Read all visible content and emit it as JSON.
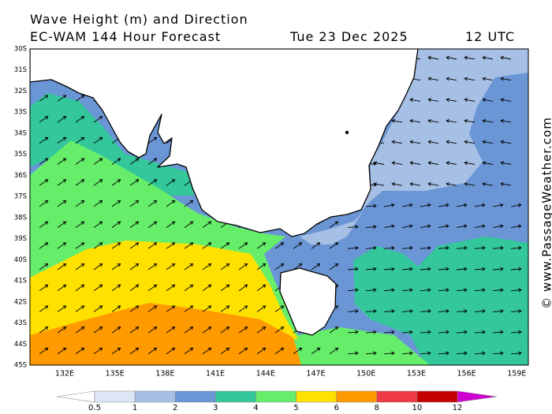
{
  "header": {
    "title": "Wave Height (m) and Direction",
    "model": "EC-WAM 144 Hour Forecast",
    "date": "Tue 23 Dec 2025",
    "time": "12 UTC"
  },
  "map": {
    "lat_labels": [
      "30S",
      "31S",
      "32S",
      "33S",
      "34S",
      "35S",
      "36S",
      "37S",
      "38S",
      "39S",
      "40S",
      "41S",
      "42S",
      "43S",
      "44S",
      "45S"
    ],
    "lon_labels": [
      "132E",
      "135E",
      "138E",
      "141E",
      "144E",
      "147E",
      "150E",
      "153E",
      "156E",
      "159E"
    ]
  },
  "legend": {
    "ticks": [
      0.5,
      1,
      2,
      3,
      4,
      5,
      6,
      8,
      10,
      12
    ],
    "colors": [
      "#dde6f5",
      "#a6bfe4",
      "#6b96d6",
      "#33c79b",
      "#66ee6a",
      "#ffe100",
      "#ff9a00",
      "#ee3a44",
      "#c40000"
    ]
  },
  "watermark": "© www.PassageWeather.com"
}
